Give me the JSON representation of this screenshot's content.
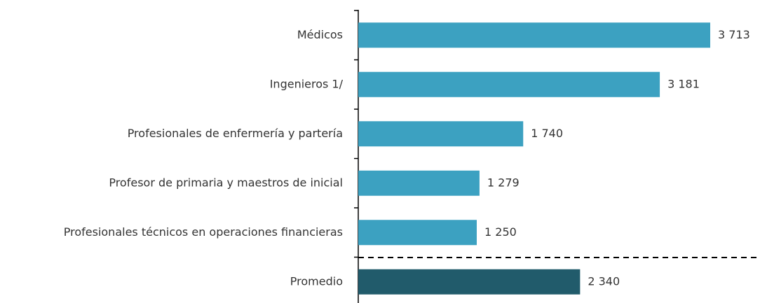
{
  "chart_data": {
    "type": "barh",
    "categories": [
      "Médicos",
      "Ingenieros 1/",
      "Profesionales de enfermería y partería",
      "Profesor de primaria y maestros de inicial",
      "Profesionales técnicos en operaciones financieras",
      "Promedio"
    ],
    "values": [
      3713,
      3181,
      1740,
      1279,
      1250,
      2340
    ],
    "value_labels": [
      "3 713",
      "3 181",
      "1 740",
      "1 279",
      "1 250",
      "2 340"
    ],
    "colors": [
      "#3ca1c1",
      "#3ca1c1",
      "#3ca1c1",
      "#3ca1c1",
      "#3ca1c1",
      "#215b6b"
    ]
  }
}
